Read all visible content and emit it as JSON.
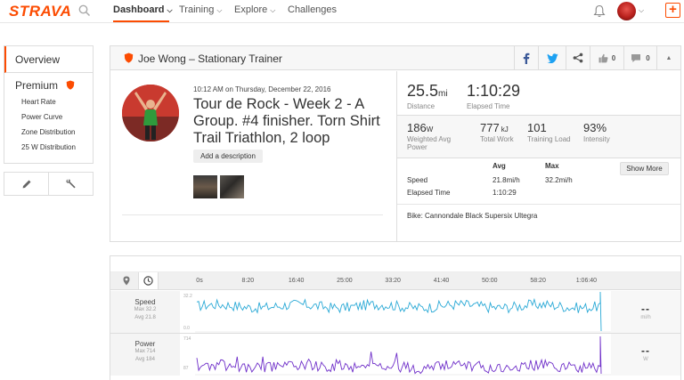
{
  "nav": {
    "logo": "STRAVA",
    "items": [
      {
        "label": "Dashboard"
      },
      {
        "label": "Training"
      },
      {
        "label": "Explore"
      },
      {
        "label": "Challenges"
      }
    ],
    "upload_label": "+"
  },
  "sidebar": {
    "overview": "Overview",
    "premium": "Premium",
    "links": [
      "Heart Rate",
      "Power Curve",
      "Zone Distribution",
      "25 W Distribution"
    ]
  },
  "activity": {
    "header_title": "Joe Wong – Stationary Trainer",
    "kudos_count": "0",
    "comment_count": "0",
    "datetime": "10:12 AM on Thursday, December 22, 2016",
    "name": "Tour de Rock - Week 2 - A Group. #4 finisher. Torn Shirt Trail Triathlon, 2 loop",
    "add_description": "Add a description",
    "distance": {
      "value": "25.5",
      "unit": "mi",
      "label": "Distance"
    },
    "elapsed": {
      "value": "1:10:29",
      "label": "Elapsed Time"
    },
    "weighted_power": {
      "value": "186",
      "unit": "W",
      "label": "Weighted Avg Power"
    },
    "total_work": {
      "value": "777",
      "unit": "kJ",
      "label": "Total Work"
    },
    "training_load": {
      "value": "101",
      "label": "Training Load"
    },
    "intensity": {
      "value": "93%",
      "label": "Intensity"
    },
    "table": {
      "avg_header": "Avg",
      "max_header": "Max",
      "rows": [
        {
          "label": "Speed",
          "avg": "21.8mi/h",
          "max": "32.2mi/h"
        },
        {
          "label": "Elapsed Time",
          "avg": "1:10:29",
          "max": ""
        }
      ]
    },
    "show_more": "Show More",
    "bike": "Bike: Cannondale Black Supersix Ultegra"
  },
  "analysis": {
    "ticks": [
      "0s",
      "8:20",
      "16:40",
      "25:00",
      "33:20",
      "41:40",
      "50:00",
      "58:20",
      "1:06:40"
    ],
    "speed": {
      "name": "Speed",
      "max": "Max 32.2",
      "avg": "Avg 21.8",
      "axis_top": "32.2",
      "axis_bottom": "0.0",
      "value": "--",
      "unit": "mi/h",
      "color": "#2aa9d6"
    },
    "power": {
      "name": "Power",
      "max": "Max 714",
      "avg": "Avg 184",
      "axis_top": "714",
      "axis_bottom": "87",
      "value": "--",
      "unit": "W",
      "color": "#6f2fc9"
    }
  },
  "colors": {
    "brand": "#fc4c02",
    "facebook": "#3b5998",
    "twitter": "#1da1f2"
  }
}
